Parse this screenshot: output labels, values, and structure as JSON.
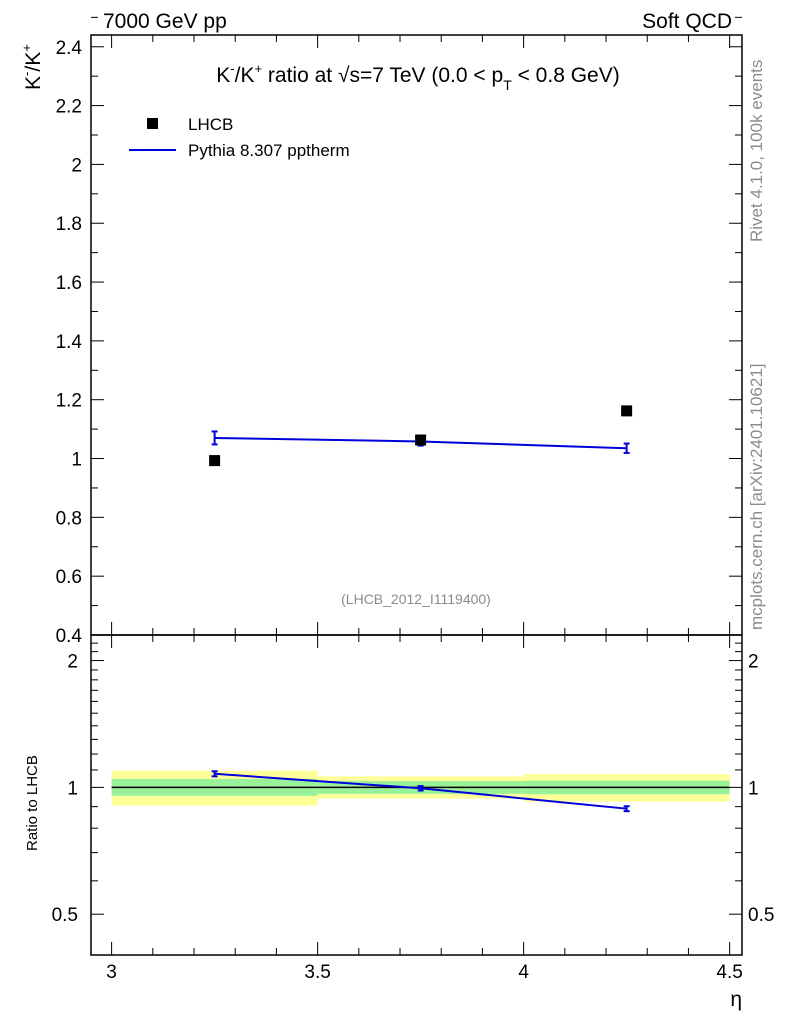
{
  "header": {
    "left": "7000 GeV pp",
    "right": "Soft QCD"
  },
  "side_text": {
    "rivet": "Rivet 4.1.0,  100k events",
    "mcplots": "mcplots.cern.ch [arXiv:2401.10621]"
  },
  "watermark": "(LHCB_2012_I1119400)",
  "chart_data": {
    "type": "scatter",
    "title": {
      "a": "K",
      "a_sup": "-",
      "b": "/K",
      "b_sup": "+",
      "c": " ratio at ",
      "sqrt": "√",
      "d": "s=7 TeV (0.0 < p",
      "sub": "T",
      "e": " < 0.8 GeV)"
    },
    "ylabel": {
      "a": "K",
      "a_sup": "-",
      "b": "/K",
      "b_sup": "+"
    },
    "xlabel": "η",
    "xlim": [
      2.95,
      4.53
    ],
    "ylim": [
      0.4,
      2.44
    ],
    "x_ticks": [
      3,
      3.5,
      4,
      4.5
    ],
    "x_tick_labels": [
      "3",
      "3.5",
      "4",
      "4.5"
    ],
    "y_ticks": [
      0.4,
      0.6,
      0.8,
      1,
      1.2,
      1.4,
      1.6,
      1.8,
      2,
      2.2,
      2.4
    ],
    "y_tick_labels": [
      "0.4",
      "0.6",
      "0.8",
      "1",
      "1.2",
      "1.4",
      "1.6",
      "1.8",
      "2",
      "2.2",
      "2.4"
    ],
    "legend": [
      "LHCB",
      "Pythia 8.307 pptherm"
    ],
    "series": [
      {
        "name": "LHCB",
        "x": [
          3.25,
          3.75,
          4.25
        ],
        "y": [
          0.993,
          1.063,
          1.162
        ],
        "color": "#000000",
        "marker": "square"
      },
      {
        "name": "Pythia 8.307 pptherm",
        "x": [
          3.25,
          3.75,
          4.25
        ],
        "y": [
          1.07,
          1.058,
          1.035
        ],
        "yerr": [
          0.022,
          0.014,
          0.016
        ],
        "color": "#0000dd",
        "marker": "line"
      }
    ],
    "ratio": {
      "ylabel": "Ratio to LHCB",
      "ylim": [
        0.4,
        2.3
      ],
      "y_ticks_labeled": [
        0.5,
        1,
        2
      ],
      "y_tick_labels": [
        "0.5",
        "1",
        "2"
      ],
      "bins": [
        {
          "x_low": 3.0,
          "x_high": 3.5,
          "stat": [
            0.955,
            1.047
          ],
          "total": [
            0.905,
            1.095
          ]
        },
        {
          "x_low": 3.5,
          "x_high": 4.0,
          "stat": [
            0.965,
            1.035
          ],
          "total": [
            0.94,
            1.062
          ]
        },
        {
          "x_low": 4.0,
          "x_high": 4.5,
          "stat": [
            0.963,
            1.037
          ],
          "total": [
            0.925,
            1.075
          ]
        }
      ],
      "pythia": {
        "x": [
          3.25,
          3.75,
          4.25
        ],
        "y": [
          1.077,
          0.995,
          0.89
        ],
        "yerr": [
          0.015,
          0.012,
          0.012
        ]
      },
      "colors": {
        "stat": "#99f299",
        "total": "#ffff99",
        "line": "#0000dd"
      }
    }
  }
}
